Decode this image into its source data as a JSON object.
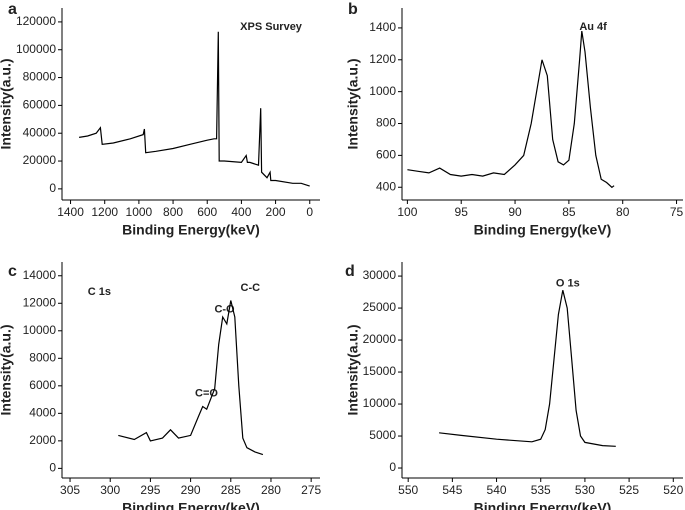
{
  "chart_data": [
    {
      "type": "line",
      "label": "a",
      "xlabel": "Binding Energy(keV)",
      "ylabel": "Intensity(a.u.)",
      "annotations": [
        "XPS Survey"
      ],
      "x": [
        1350,
        1300,
        1250,
        1225,
        1215,
        1150,
        1050,
        975,
        968,
        960,
        900,
        800,
        700,
        600,
        560,
        545,
        535,
        530,
        500,
        400,
        372,
        365,
        350,
        300,
        287,
        282,
        250,
        232,
        228,
        200,
        100,
        50,
        0
      ],
      "values": [
        37000,
        38000,
        40000,
        44000,
        32000,
        33000,
        36000,
        39000,
        43000,
        26000,
        27000,
        29000,
        32000,
        35000,
        36000,
        36000,
        113000,
        20000,
        20000,
        19000,
        24000,
        19000,
        19000,
        17000,
        58000,
        12000,
        8000,
        12000,
        6000,
        6000,
        4000,
        4000,
        2000
      ],
      "color": "#000000",
      "xlim": [
        1450,
        -60
      ],
      "ylim": [
        -8000,
        130000
      ],
      "xticks": [
        1400,
        1200,
        1000,
        800,
        600,
        400,
        200,
        0
      ],
      "yticks": [
        0,
        20000,
        40000,
        60000,
        80000,
        100000,
        120000
      ]
    },
    {
      "type": "line",
      "label": "b",
      "xlabel": "Binding Energy(keV)",
      "ylabel": "Intensity(a.u.)",
      "annotations": [
        "Au 4f"
      ],
      "x": [
        100,
        99,
        98,
        97,
        96,
        95,
        94,
        93,
        92,
        91,
        90,
        89.2,
        88.5,
        88,
        87.5,
        87,
        86.5,
        86,
        85.5,
        85,
        84.5,
        84,
        83.8,
        83.5,
        83,
        82.5,
        82,
        81.5,
        81,
        80.8
      ],
      "values": [
        510,
        500,
        490,
        520,
        480,
        470,
        480,
        470,
        490,
        480,
        540,
        600,
        800,
        1000,
        1200,
        1100,
        700,
        560,
        540,
        570,
        800,
        1200,
        1380,
        1250,
        900,
        600,
        450,
        430,
        400,
        410
      ],
      "color": "#000000",
      "xlim": [
        100.5,
        74.4
      ],
      "ylim": [
        320,
        1525
      ],
      "xticks": [
        100,
        95,
        90,
        85,
        80,
        75
      ],
      "yticks": [
        400,
        600,
        800,
        1000,
        1200,
        1400
      ]
    },
    {
      "type": "line",
      "label": "c",
      "xlabel": "Binding Energy(keV)",
      "ylabel": "Intensity(a.u.)",
      "annotations": [
        "C 1s",
        "C-O",
        "C-C",
        "C=O"
      ],
      "x": [
        299,
        297,
        295.5,
        295,
        293.5,
        292.5,
        291.5,
        290,
        289,
        288.5,
        288,
        287,
        286.5,
        286,
        285.5,
        285,
        284.5,
        284,
        283.5,
        283,
        282,
        281
      ],
      "values": [
        2400,
        2100,
        2600,
        2000,
        2200,
        2800,
        2200,
        2400,
        3800,
        4500,
        4300,
        5800,
        9000,
        11000,
        10500,
        12200,
        11000,
        6000,
        2200,
        1500,
        1200,
        1000
      ],
      "color": "#000000",
      "xlim": [
        306,
        273.9
      ],
      "ylim": [
        -700,
        15000
      ],
      "xticks": [
        305,
        300,
        295,
        290,
        285,
        280,
        275
      ],
      "yticks": [
        0,
        2000,
        4000,
        6000,
        8000,
        10000,
        12000,
        14000
      ]
    },
    {
      "type": "line",
      "label": "d",
      "xlabel": "Binding Energy(keV)",
      "ylabel": "Intensity(a.u.)",
      "annotations": [
        "O 1s"
      ],
      "x": [
        546.5,
        544,
        540,
        536,
        535,
        534.5,
        534,
        533.5,
        533,
        532.5,
        532,
        531.5,
        531,
        530.5,
        530,
        528,
        526.5
      ],
      "values": [
        5500,
        5100,
        4500,
        4100,
        4500,
        6000,
        10000,
        17000,
        24000,
        27800,
        25000,
        17000,
        9000,
        5000,
        4000,
        3500,
        3400
      ],
      "color": "#000000",
      "xlim": [
        550.7,
        518.9
      ],
      "ylim": [
        -1560,
        32200
      ],
      "xticks": [
        550,
        545,
        540,
        535,
        530,
        525,
        520
      ],
      "yticks": [
        0,
        5000,
        10000,
        15000,
        20000,
        25000,
        30000
      ]
    }
  ]
}
